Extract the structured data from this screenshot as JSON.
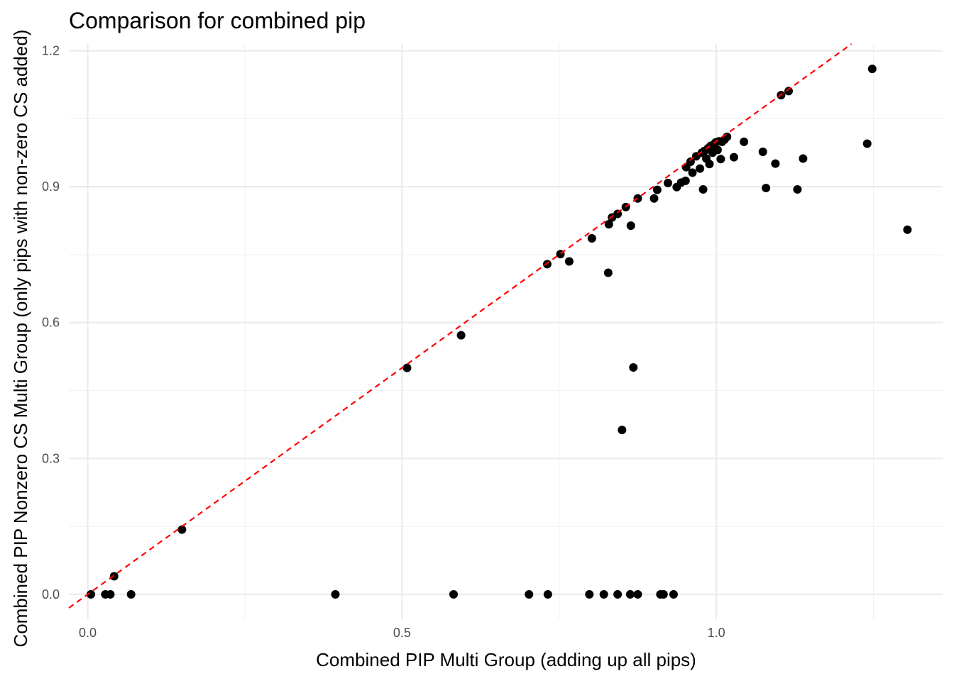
{
  "chart_data": {
    "type": "scatter",
    "title": "Comparison for combined pip",
    "xlabel": "Combined PIP Multi Group (adding up all pips)",
    "ylabel": "Combined PIP Nonzero CS Multi Group (only pips with non-zero CS added)",
    "xlim": [
      -0.03,
      1.36
    ],
    "ylim": [
      -0.055,
      1.215
    ],
    "x_ticks": [
      0.0,
      0.5,
      1.0
    ],
    "x_tick_labels": [
      "0.0",
      "0.5",
      "1.0"
    ],
    "y_ticks": [
      0.0,
      0.3,
      0.6,
      0.9,
      1.2
    ],
    "y_tick_labels": [
      "0.0",
      "0.3",
      "0.6",
      "0.9",
      "1.2"
    ],
    "grid": true,
    "reference_line": {
      "type": "identity",
      "slope": 1,
      "intercept": 0,
      "color": "#ff0000",
      "style": "dashed"
    },
    "colors": {
      "points": "#000000",
      "reference_line": "#ff0000",
      "grid": "#ebebeb"
    },
    "points": [
      {
        "x": 0.005,
        "y": 0.0
      },
      {
        "x": 0.028,
        "y": 0.0
      },
      {
        "x": 0.036,
        "y": 0.0
      },
      {
        "x": 0.042,
        "y": 0.04
      },
      {
        "x": 0.069,
        "y": 0.0
      },
      {
        "x": 0.15,
        "y": 0.143
      },
      {
        "x": 0.394,
        "y": 0.0
      },
      {
        "x": 0.508,
        "y": 0.5
      },
      {
        "x": 0.582,
        "y": 0.0
      },
      {
        "x": 0.594,
        "y": 0.572
      },
      {
        "x": 0.702,
        "y": 0.0
      },
      {
        "x": 0.732,
        "y": 0.0
      },
      {
        "x": 0.731,
        "y": 0.729
      },
      {
        "x": 0.752,
        "y": 0.751
      },
      {
        "x": 0.766,
        "y": 0.735
      },
      {
        "x": 0.798,
        "y": 0.0
      },
      {
        "x": 0.802,
        "y": 0.786
      },
      {
        "x": 0.821,
        "y": 0.0
      },
      {
        "x": 0.828,
        "y": 0.71
      },
      {
        "x": 0.829,
        "y": 0.817
      },
      {
        "x": 0.834,
        "y": 0.832
      },
      {
        "x": 0.843,
        "y": 0.0
      },
      {
        "x": 0.843,
        "y": 0.84
      },
      {
        "x": 0.85,
        "y": 0.363
      },
      {
        "x": 0.856,
        "y": 0.855
      },
      {
        "x": 0.863,
        "y": 0.0
      },
      {
        "x": 0.864,
        "y": 0.814
      },
      {
        "x": 0.868,
        "y": 0.501
      },
      {
        "x": 0.875,
        "y": 0.0
      },
      {
        "x": 0.875,
        "y": 0.874
      },
      {
        "x": 0.901,
        "y": 0.874
      },
      {
        "x": 0.906,
        "y": 0.893
      },
      {
        "x": 0.911,
        "y": 0.0
      },
      {
        "x": 0.916,
        "y": 0.0
      },
      {
        "x": 0.923,
        "y": 0.908
      },
      {
        "x": 0.932,
        "y": 0.0
      },
      {
        "x": 0.937,
        "y": 0.899
      },
      {
        "x": 0.944,
        "y": 0.909
      },
      {
        "x": 0.951,
        "y": 0.913
      },
      {
        "x": 0.952,
        "y": 0.943
      },
      {
        "x": 0.959,
        "y": 0.955
      },
      {
        "x": 0.962,
        "y": 0.931
      },
      {
        "x": 0.968,
        "y": 0.967
      },
      {
        "x": 0.974,
        "y": 0.94
      },
      {
        "x": 0.977,
        "y": 0.975
      },
      {
        "x": 0.979,
        "y": 0.894
      },
      {
        "x": 0.981,
        "y": 0.979
      },
      {
        "x": 0.984,
        "y": 0.962
      },
      {
        "x": 0.987,
        "y": 0.985
      },
      {
        "x": 0.989,
        "y": 0.95
      },
      {
        "x": 0.991,
        "y": 0.99
      },
      {
        "x": 0.994,
        "y": 0.975
      },
      {
        "x": 0.996,
        "y": 0.993
      },
      {
        "x": 0.999,
        "y": 0.998
      },
      {
        "x": 1.002,
        "y": 0.981
      },
      {
        "x": 1.004,
        "y": 1.0
      },
      {
        "x": 1.007,
        "y": 0.961
      },
      {
        "x": 1.009,
        "y": 0.999
      },
      {
        "x": 1.013,
        "y": 1.004
      },
      {
        "x": 1.017,
        "y": 1.01
      },
      {
        "x": 1.028,
        "y": 0.965
      },
      {
        "x": 1.044,
        "y": 0.999
      },
      {
        "x": 1.074,
        "y": 0.977
      },
      {
        "x": 1.079,
        "y": 0.897
      },
      {
        "x": 1.094,
        "y": 0.951
      },
      {
        "x": 1.103,
        "y": 1.102
      },
      {
        "x": 1.115,
        "y": 1.111
      },
      {
        "x": 1.129,
        "y": 0.894
      },
      {
        "x": 1.138,
        "y": 0.962
      },
      {
        "x": 1.24,
        "y": 0.995
      },
      {
        "x": 1.248,
        "y": 1.16
      },
      {
        "x": 1.304,
        "y": 0.805
      }
    ]
  }
}
